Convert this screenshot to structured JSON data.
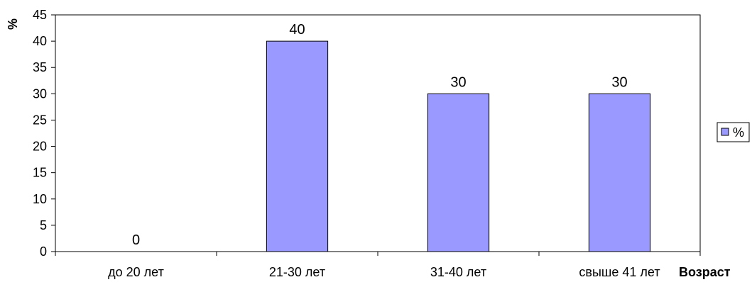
{
  "chart_data": {
    "type": "bar",
    "categories": [
      "до 20 лет",
      "21-30 лет",
      "31-40 лет",
      "свыше 41 лет"
    ],
    "series": [
      {
        "name": "%",
        "values": [
          0,
          40,
          30,
          30
        ],
        "color": "#9999ff"
      }
    ],
    "data_labels": [
      "0",
      "40",
      "30",
      "30"
    ],
    "title": "",
    "xlabel": "Возраст",
    "ylabel": "%",
    "ylim": [
      0,
      45
    ],
    "yticks": [
      0,
      5,
      10,
      15,
      20,
      25,
      30,
      35,
      40,
      45
    ],
    "grid": false,
    "legend": {
      "position": "right",
      "entries": [
        "%"
      ]
    }
  }
}
